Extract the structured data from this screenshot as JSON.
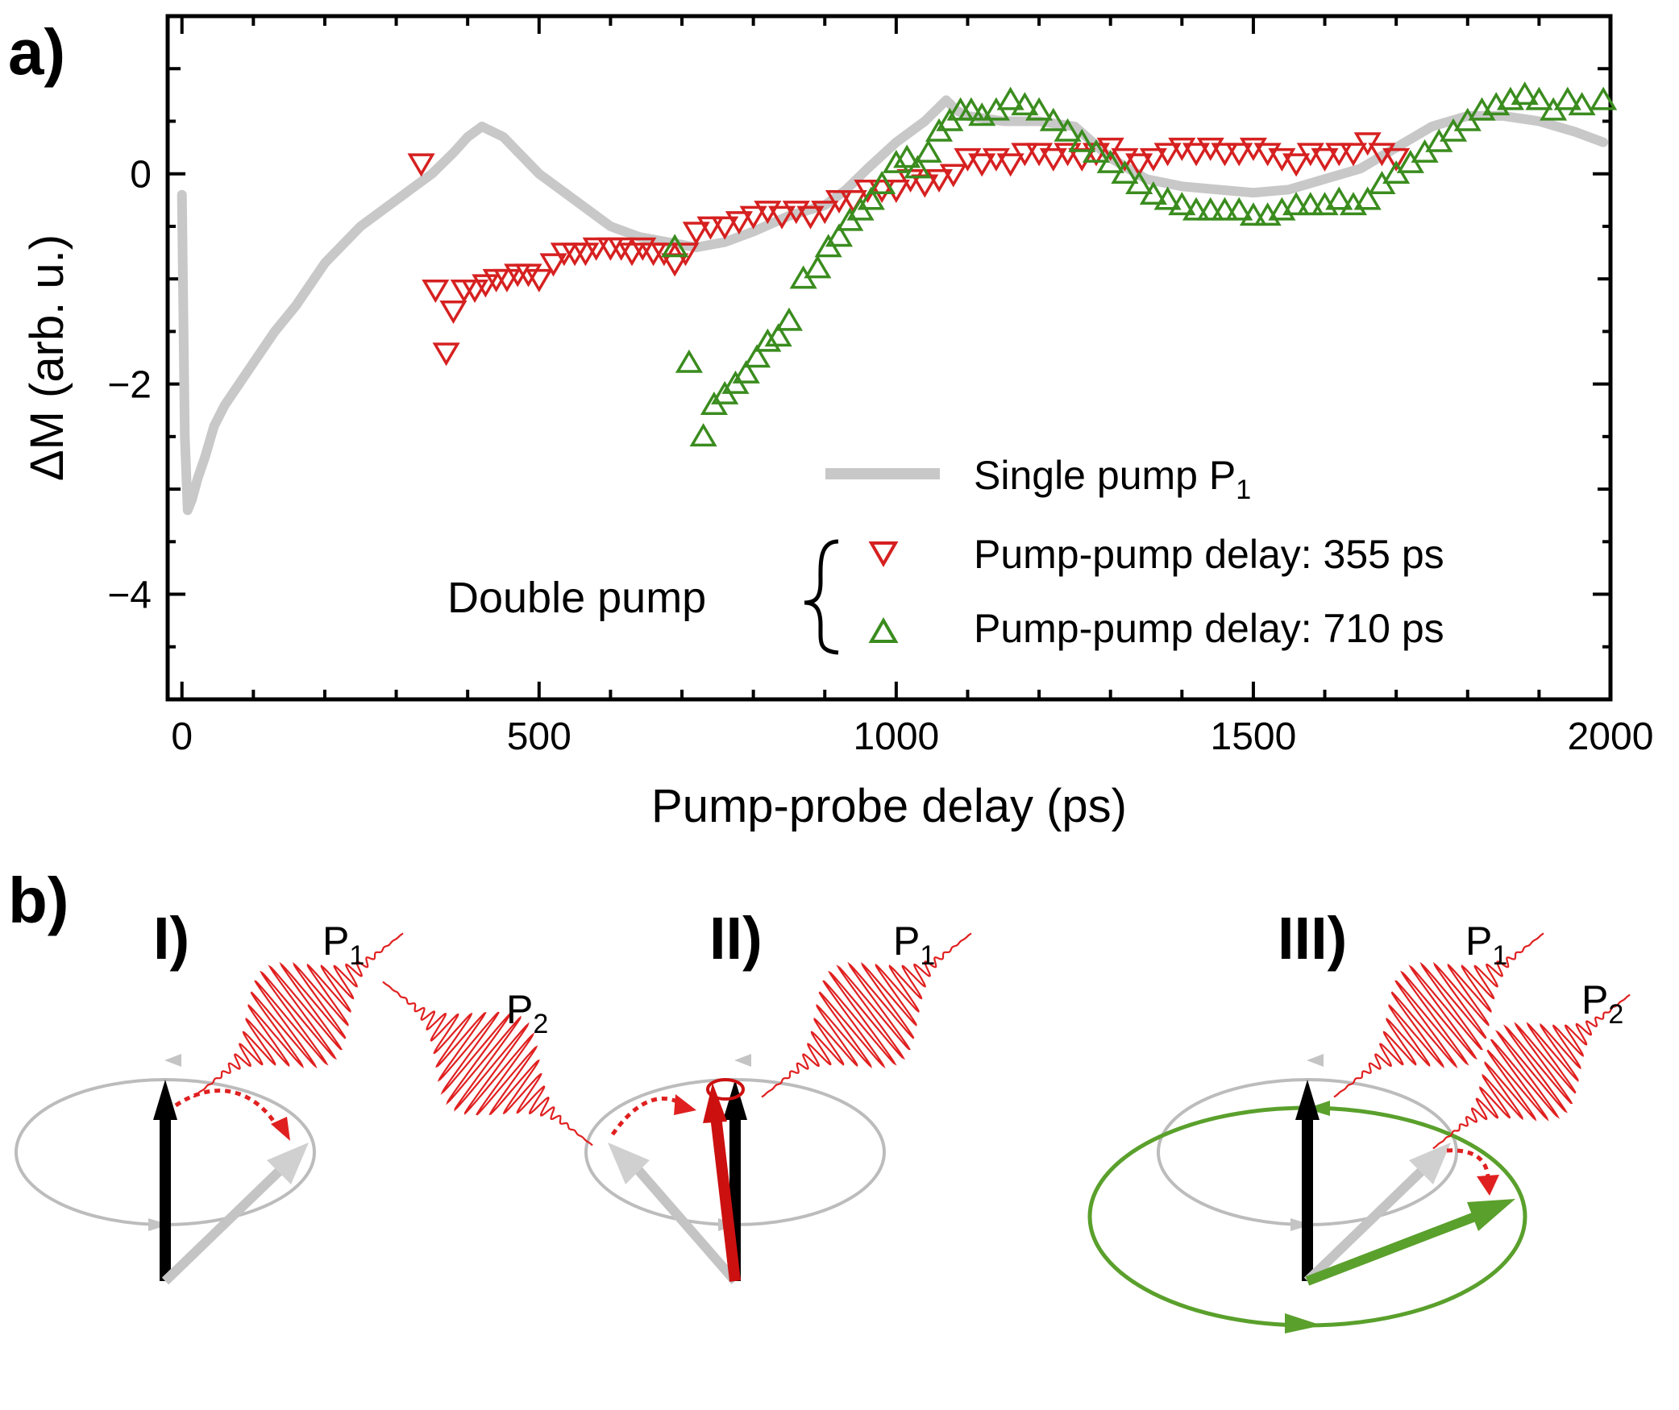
{
  "panel_a_label": "a)",
  "panel_b_label": "b)",
  "chart_data": {
    "type": "scatter",
    "xlabel": "Pump-probe delay (ps)",
    "ylabel": "ΔM (arb. u.)",
    "xlim": [
      -20,
      2000
    ],
    "ylim": [
      -5,
      1.5
    ],
    "x_ticks": [
      0,
      500,
      1000,
      1500,
      2000
    ],
    "y_ticks": [
      0,
      -2,
      -4
    ],
    "y_tick_labels": [
      "0",
      "−2",
      "−4"
    ],
    "series": [
      {
        "name": "Single pump P",
        "name_subscript": "1",
        "marker": "line",
        "color": "#c8c8c8",
        "x": [
          0,
          4,
          8,
          14,
          22,
          32,
          45,
          60,
          80,
          100,
          130,
          160,
          200,
          250,
          300,
          350,
          380,
          400,
          420,
          450,
          500,
          550,
          600,
          640,
          680,
          720,
          760,
          800,
          850,
          900,
          930,
          960,
          1000,
          1040,
          1070,
          1085,
          1100,
          1150,
          1200,
          1250,
          1300,
          1350,
          1400,
          1450,
          1500,
          1550,
          1600,
          1650,
          1700,
          1750,
          1800,
          1850,
          1900,
          1950,
          1990
        ],
        "y": [
          -0.2,
          -2.5,
          -3.2,
          -3.1,
          -2.9,
          -2.7,
          -2.4,
          -2.2,
          -2.0,
          -1.8,
          -1.5,
          -1.25,
          -0.85,
          -0.5,
          -0.25,
          0.0,
          0.2,
          0.35,
          0.45,
          0.35,
          0.0,
          -0.25,
          -0.5,
          -0.6,
          -0.65,
          -0.7,
          -0.65,
          -0.55,
          -0.4,
          -0.3,
          -0.15,
          0.05,
          0.3,
          0.5,
          0.7,
          0.6,
          0.55,
          0.5,
          0.5,
          0.45,
          0.15,
          -0.05,
          -0.12,
          -0.15,
          -0.18,
          -0.15,
          -0.05,
          0.05,
          0.25,
          0.45,
          0.55,
          0.55,
          0.5,
          0.4,
          0.3
        ]
      },
      {
        "name": "Pump-pump delay: 355 ps",
        "marker": "triangle-down",
        "color": "#d62020",
        "x": [
          335,
          355,
          370,
          380,
          395,
          410,
          425,
          440,
          455,
          470,
          485,
          500,
          520,
          535,
          550,
          565,
          580,
          600,
          615,
          630,
          645,
          660,
          675,
          690,
          705,
          720,
          740,
          760,
          780,
          800,
          820,
          840,
          860,
          880,
          900,
          920,
          940,
          960,
          980,
          1000,
          1020,
          1040,
          1060,
          1080,
          1100,
          1120,
          1140,
          1160,
          1180,
          1200,
          1220,
          1240,
          1260,
          1280,
          1300,
          1320,
          1340,
          1360,
          1380,
          1400,
          1420,
          1440,
          1460,
          1480,
          1500,
          1520,
          1540,
          1560,
          1580,
          1600,
          1620,
          1640,
          1660,
          1680,
          1700
        ],
        "y": [
          0.1,
          -1.1,
          -1.7,
          -1.3,
          -1.1,
          -1.1,
          -1.05,
          -1.0,
          -1.0,
          -0.95,
          -0.95,
          -1.0,
          -0.85,
          -0.75,
          -0.75,
          -0.75,
          -0.7,
          -0.7,
          -0.7,
          -0.75,
          -0.7,
          -0.75,
          -0.75,
          -0.85,
          -0.75,
          -0.55,
          -0.5,
          -0.5,
          -0.45,
          -0.4,
          -0.35,
          -0.4,
          -0.35,
          -0.4,
          -0.35,
          -0.25,
          -0.25,
          -0.15,
          -0.15,
          -0.15,
          -0.05,
          -0.1,
          -0.05,
          0.0,
          0.15,
          0.1,
          0.15,
          0.1,
          0.2,
          0.2,
          0.15,
          0.2,
          0.15,
          0.2,
          0.25,
          0.15,
          0.1,
          0.15,
          0.2,
          0.25,
          0.2,
          0.25,
          0.2,
          0.2,
          0.25,
          0.2,
          0.15,
          0.1,
          0.2,
          0.15,
          0.2,
          0.2,
          0.3,
          0.2,
          0.15
        ]
      },
      {
        "name": "Pump-pump delay: 710 ps",
        "marker": "triangle-up",
        "color": "#3a8c1e",
        "x": [
          690,
          710,
          730,
          745,
          760,
          775,
          790,
          805,
          820,
          835,
          850,
          870,
          890,
          905,
          920,
          935,
          950,
          965,
          980,
          1000,
          1015,
          1030,
          1045,
          1060,
          1075,
          1090,
          1105,
          1120,
          1140,
          1160,
          1180,
          1200,
          1220,
          1240,
          1260,
          1280,
          1300,
          1320,
          1340,
          1360,
          1380,
          1400,
          1420,
          1440,
          1460,
          1480,
          1500,
          1520,
          1540,
          1560,
          1580,
          1600,
          1620,
          1640,
          1660,
          1680,
          1700,
          1720,
          1740,
          1760,
          1780,
          1800,
          1820,
          1840,
          1860,
          1880,
          1900,
          1920,
          1940,
          1960,
          1990
        ],
        "y": [
          -0.7,
          -1.8,
          -2.5,
          -2.2,
          -2.1,
          -2.0,
          -1.9,
          -1.75,
          -1.6,
          -1.55,
          -1.4,
          -1.0,
          -0.9,
          -0.7,
          -0.6,
          -0.45,
          -0.35,
          -0.25,
          -0.1,
          0.1,
          0.15,
          0.05,
          0.2,
          0.4,
          0.5,
          0.6,
          0.6,
          0.55,
          0.6,
          0.7,
          0.65,
          0.6,
          0.5,
          0.4,
          0.3,
          0.2,
          0.1,
          0.0,
          -0.1,
          -0.2,
          -0.25,
          -0.3,
          -0.35,
          -0.35,
          -0.35,
          -0.35,
          -0.4,
          -0.4,
          -0.35,
          -0.3,
          -0.3,
          -0.3,
          -0.25,
          -0.3,
          -0.25,
          -0.1,
          0.0,
          0.1,
          0.2,
          0.3,
          0.4,
          0.5,
          0.6,
          0.65,
          0.7,
          0.75,
          0.7,
          0.6,
          0.7,
          0.65,
          0.7
        ]
      }
    ],
    "legend_group_label": "Double pump",
    "legend_position": "bottom-right"
  },
  "schematic": {
    "stages": [
      {
        "label": "I)",
        "pulses": [
          {
            "name": "P",
            "sub": "1"
          }
        ]
      },
      {
        "label": "II)",
        "pulses": [
          {
            "name": "P",
            "sub": "2"
          },
          {
            "name": "P",
            "sub": "1"
          }
        ]
      },
      {
        "label": "III)",
        "pulses": [
          {
            "name": "P",
            "sub": "1"
          },
          {
            "name": "P",
            "sub": "2"
          }
        ]
      }
    ],
    "colors": {
      "pulse": "#e02020",
      "precession": "#b0b0b0",
      "new_precession": "#5aa02c",
      "magnetization": "#000000"
    }
  }
}
